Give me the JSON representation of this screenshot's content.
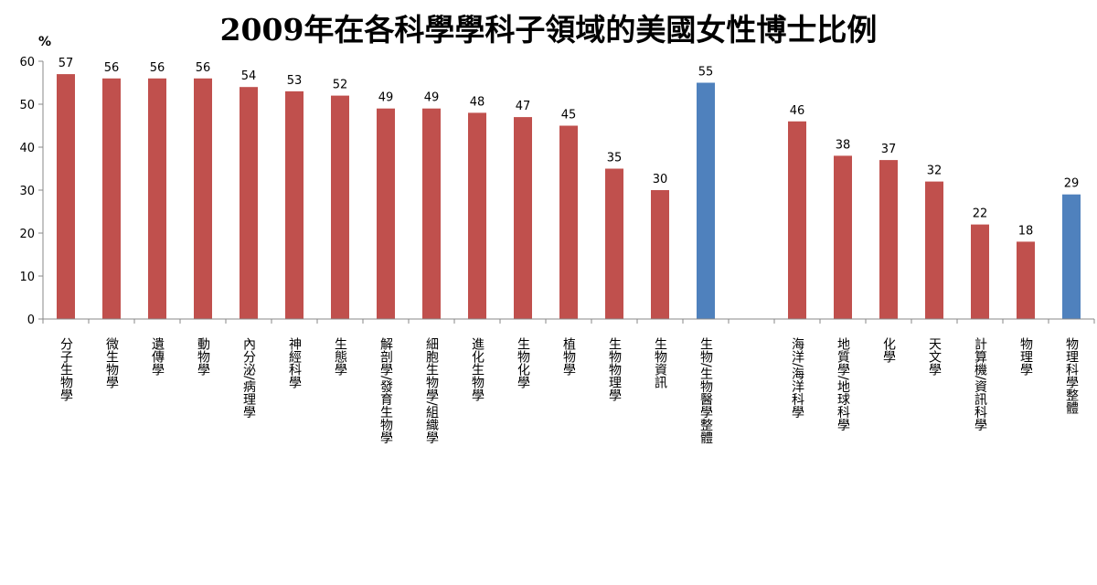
{
  "chart_data": {
    "type": "bar",
    "title": "2009年在各科學學科子領域的美國女性博士比例",
    "ylabel": "%",
    "xlabel": "",
    "ylim": [
      0,
      60
    ],
    "yticks": [
      0,
      10,
      20,
      30,
      40,
      50,
      60
    ],
    "grid": false,
    "legend": "none",
    "colors": {
      "subfield": "#C0504D",
      "aggregate": "#4F81BD",
      "axis": "#888888"
    },
    "categories": [
      "分子生物學",
      "微生物學",
      "遺傳學",
      "動物學",
      "內分泌/病理學",
      "神經科學",
      "生態學",
      "解剖學/發育生物學",
      "細胞生物學/組織學",
      "進化生物學",
      "生物化學",
      "植物學",
      "生物物理學",
      "生物資訊",
      "生物/生物醫學整體",
      "",
      "海洋/海洋科學",
      "地質學/地球科學",
      "化學",
      "天文學",
      "計算機/資訊科學",
      "物理學",
      "物理科學整體"
    ],
    "values": [
      57,
      56,
      56,
      56,
      54,
      53,
      52,
      49,
      49,
      48,
      47,
      45,
      35,
      30,
      55,
      null,
      46,
      38,
      37,
      32,
      22,
      18,
      29
    ],
    "bar_color_keys": [
      "subfield",
      "subfield",
      "subfield",
      "subfield",
      "subfield",
      "subfield",
      "subfield",
      "subfield",
      "subfield",
      "subfield",
      "subfield",
      "subfield",
      "subfield",
      "subfield",
      "aggregate",
      "",
      "subfield",
      "subfield",
      "subfield",
      "subfield",
      "subfield",
      "subfield",
      "aggregate"
    ]
  }
}
